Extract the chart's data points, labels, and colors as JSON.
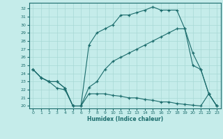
{
  "bg_color": "#c5ecea",
  "grid_color": "#a8d8d5",
  "line_color": "#1a6b6b",
  "xlabel": "Humidex (Indice chaleur)",
  "xlim": [
    -0.5,
    23.5
  ],
  "ylim": [
    19.7,
    32.7
  ],
  "yticks": [
    20,
    21,
    22,
    23,
    24,
    25,
    26,
    27,
    28,
    29,
    30,
    31,
    32
  ],
  "xticks": [
    0,
    1,
    2,
    3,
    4,
    5,
    6,
    7,
    8,
    9,
    10,
    11,
    12,
    13,
    14,
    15,
    16,
    17,
    18,
    19,
    20,
    21,
    22,
    23
  ],
  "line1_x": [
    0,
    1,
    2,
    3,
    4,
    5,
    6,
    7,
    8,
    9,
    10,
    11,
    12,
    13,
    14,
    15,
    16,
    17,
    18,
    19,
    20,
    21,
    22,
    23
  ],
  "line1_y": [
    24.5,
    23.5,
    23.0,
    23.0,
    22.2,
    20.0,
    20.0,
    27.5,
    29.0,
    29.5,
    30.0,
    31.2,
    31.2,
    31.5,
    31.8,
    32.2,
    31.8,
    31.8,
    31.8,
    29.5,
    25.0,
    24.5,
    21.5,
    20.0
  ],
  "line2_x": [
    0,
    1,
    2,
    3,
    4,
    5,
    6,
    7,
    8,
    9,
    10,
    11,
    12,
    13,
    14,
    15,
    16,
    17,
    18,
    19,
    20,
    21,
    22,
    23
  ],
  "line2_y": [
    24.5,
    23.5,
    23.0,
    23.0,
    22.2,
    20.0,
    20.0,
    22.3,
    23.0,
    24.5,
    25.5,
    26.0,
    26.5,
    27.0,
    27.5,
    28.0,
    28.5,
    29.0,
    29.5,
    29.5,
    26.5,
    24.5,
    21.5,
    20.0
  ],
  "line3_x": [
    0,
    1,
    2,
    3,
    4,
    5,
    6,
    7,
    8,
    9,
    10,
    11,
    12,
    13,
    14,
    15,
    16,
    17,
    18,
    19,
    20,
    21,
    22,
    23
  ],
  "line3_y": [
    24.5,
    23.5,
    23.0,
    22.2,
    22.0,
    20.0,
    20.0,
    21.5,
    21.5,
    21.5,
    21.3,
    21.2,
    21.0,
    21.0,
    20.8,
    20.7,
    20.5,
    20.5,
    20.3,
    20.2,
    20.1,
    20.0,
    21.5,
    20.0
  ]
}
